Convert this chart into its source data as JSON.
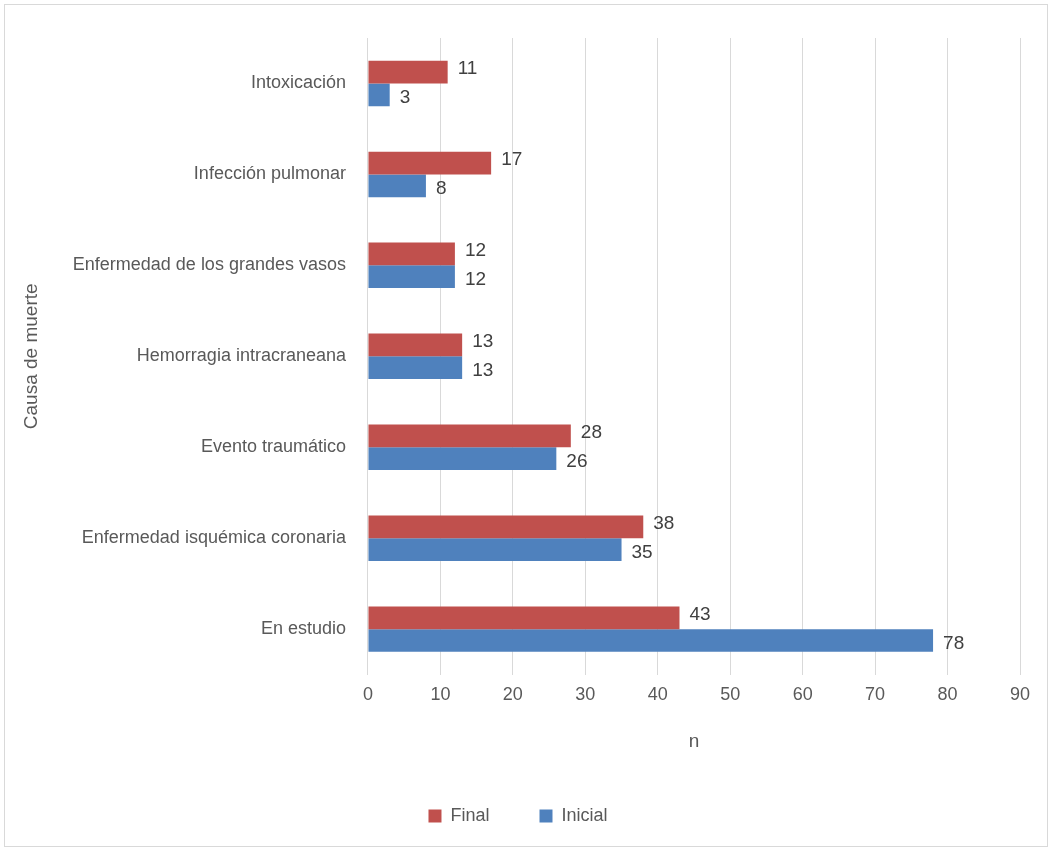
{
  "chart_data": {
    "type": "bar",
    "orientation": "horizontal",
    "categories": [
      "Intoxicación",
      "Infección pulmonar",
      "Enfermedad de los grandes vasos",
      "Hemorragia intracraneana",
      "Evento traumático",
      "Enfermedad isquémica coronaria",
      "En estudio"
    ],
    "series": [
      {
        "name": "Final",
        "color": "#c0504d",
        "values": [
          11,
          17,
          12,
          13,
          28,
          38,
          43
        ]
      },
      {
        "name": "Inicial",
        "color": "#4f81bd",
        "values": [
          3,
          8,
          12,
          13,
          26,
          35,
          78
        ]
      }
    ],
    "xlabel": "n",
    "ylabel": "Causa de muerte",
    "xlim": [
      0,
      90
    ],
    "xticks": [
      0,
      10,
      20,
      30,
      40,
      50,
      60,
      70,
      80,
      90
    ],
    "grid": "x",
    "legend": "bottom",
    "data_labels": true
  }
}
